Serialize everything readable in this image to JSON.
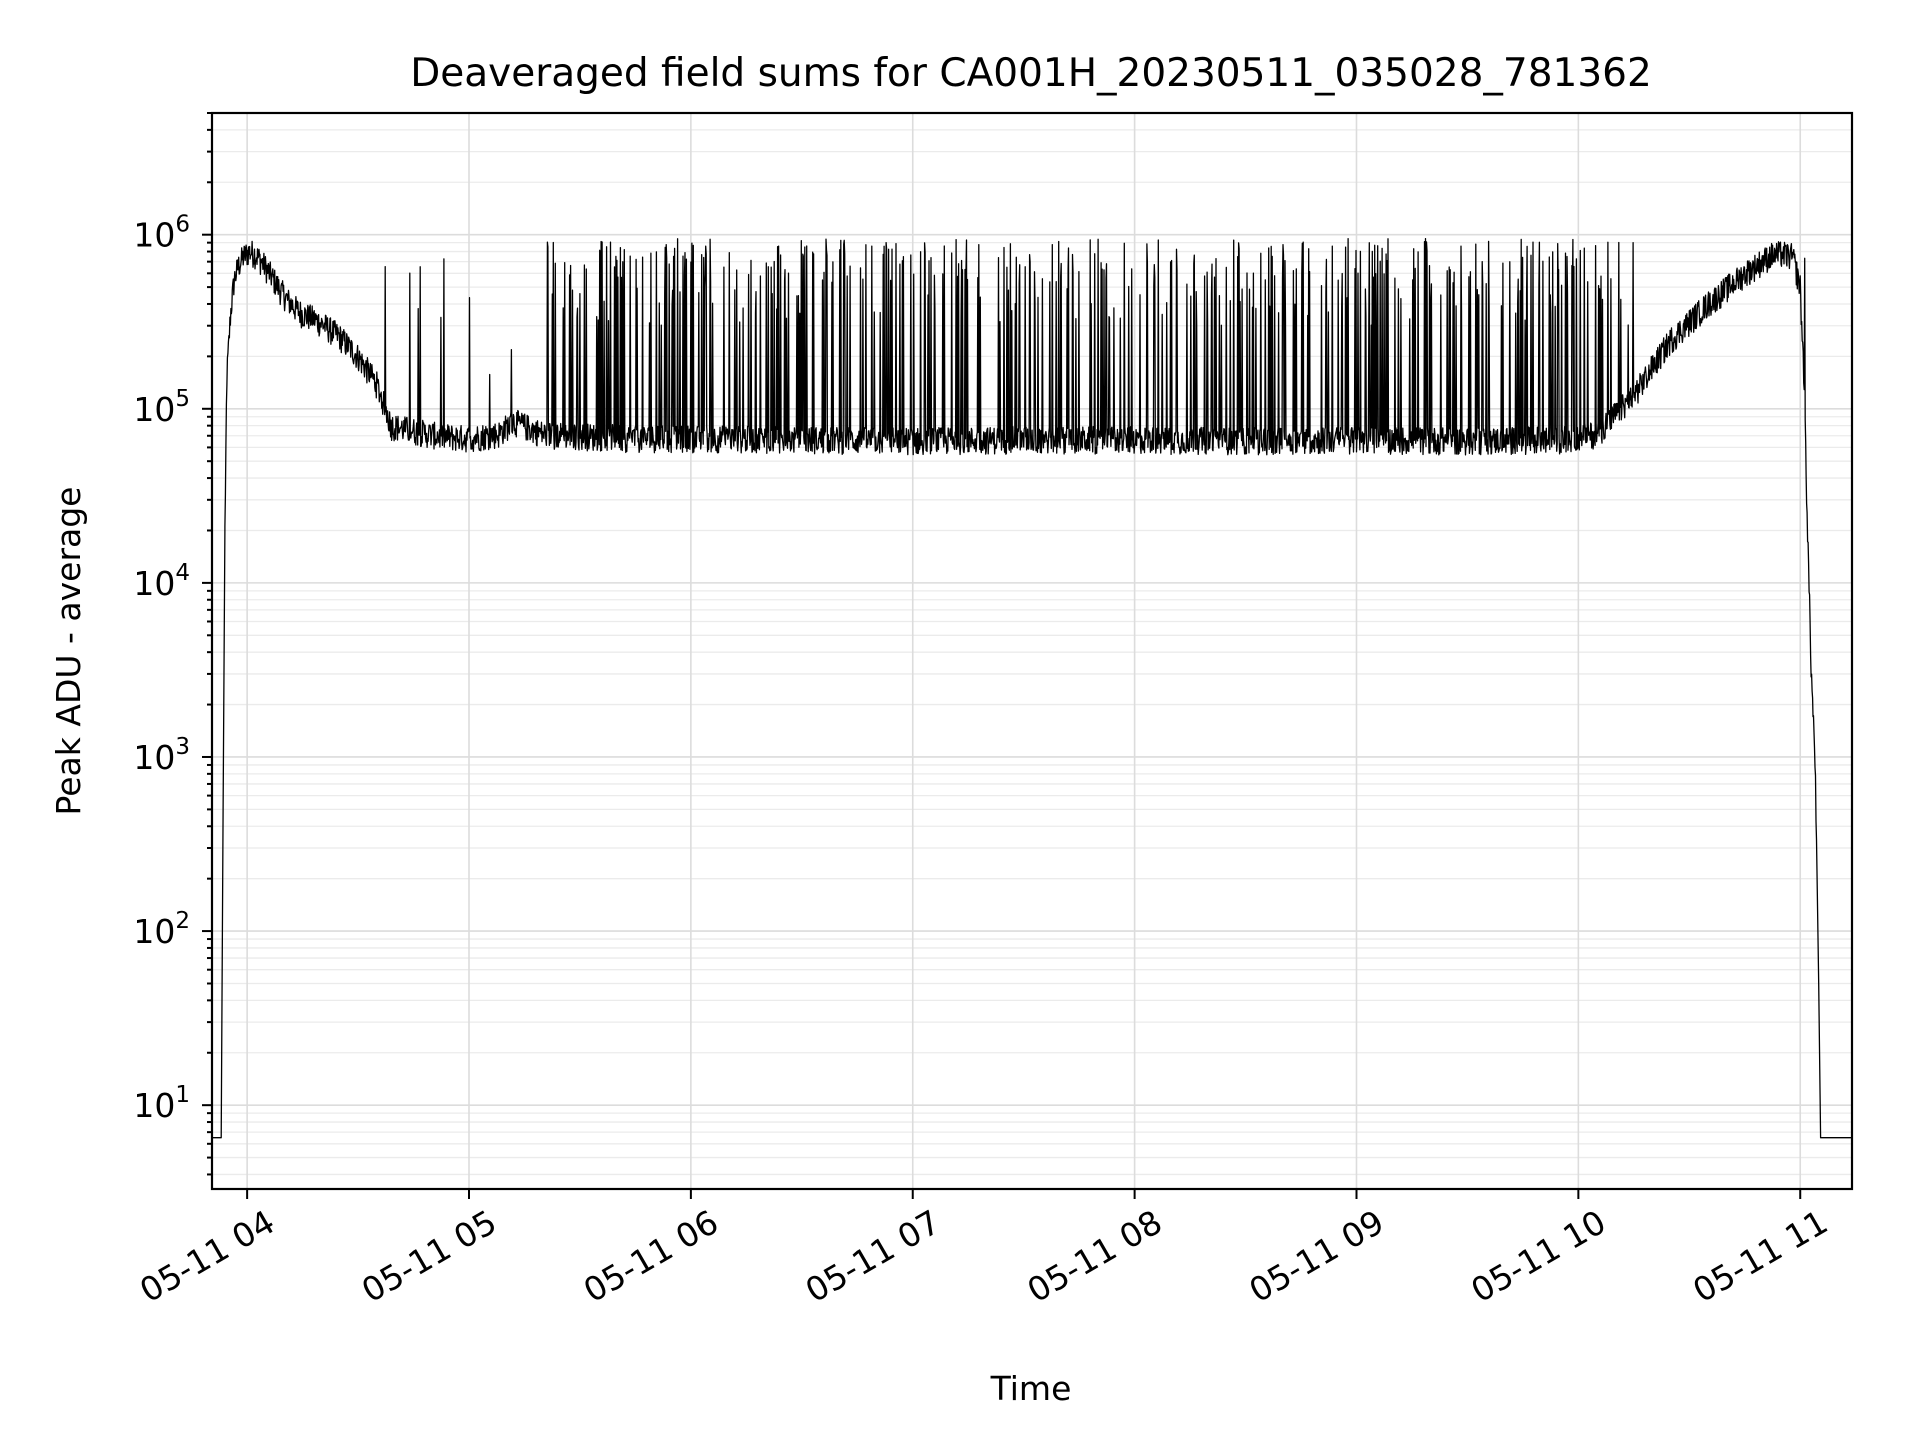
{
  "chart_data": {
    "type": "line",
    "title": "Deaveraged field sums for CA001H_20230511_035028_781362",
    "xlabel": "Time",
    "ylabel": "Peak ADU - average",
    "yscale": "log",
    "xlim": [
      "2023-05-11T03:50:30",
      "2023-05-11T11:14:00"
    ],
    "ylim": [
      3.3,
      5000000
    ],
    "grid": true,
    "x_ticks": [
      {
        "label": "05-11 04",
        "value": "2023-05-11T04:00:00"
      },
      {
        "label": "05-11 05",
        "value": "2023-05-11T05:00:00"
      },
      {
        "label": "05-11 06",
        "value": "2023-05-11T06:00:00"
      },
      {
        "label": "05-11 07",
        "value": "2023-05-11T07:00:00"
      },
      {
        "label": "05-11 08",
        "value": "2023-05-11T08:00:00"
      },
      {
        "label": "05-11 09",
        "value": "2023-05-11T09:00:00"
      },
      {
        "label": "05-11 10",
        "value": "2023-05-11T10:00:00"
      },
      {
        "label": "05-11 11",
        "value": "2023-05-11T11:00:00"
      }
    ],
    "y_ticks": [
      {
        "base": "10",
        "exp": "1",
        "value": 10
      },
      {
        "base": "10",
        "exp": "2",
        "value": 100
      },
      {
        "base": "10",
        "exp": "3",
        "value": 1000
      },
      {
        "base": "10",
        "exp": "4",
        "value": 10000
      },
      {
        "base": "10",
        "exp": "5",
        "value": 100000
      },
      {
        "base": "10",
        "exp": "6",
        "value": 1000000
      }
    ],
    "series": [
      {
        "color": "#000000",
        "x": [
          "2023-05-11T03:50:30",
          "2023-05-11T03:53:00",
          "2023-05-11T03:53:30",
          "2023-05-11T03:54:00",
          "2023-05-11T03:54:30",
          "2023-05-11T03:55:30",
          "2023-05-11T03:56:30",
          "2023-05-11T03:57:30",
          "2023-05-11T03:59:00",
          "2023-05-11T04:00:30",
          "2023-05-11T04:02:00",
          "2023-05-11T04:03:30",
          "2023-05-11T04:05:00",
          "2023-05-11T04:07:00",
          "2023-05-11T04:09:00",
          "2023-05-11T04:11:00",
          "2023-05-11T04:13:00",
          "2023-05-11T04:15:00",
          "2023-05-11T04:18:00",
          "2023-05-11T04:21:00",
          "2023-05-11T04:25:00",
          "2023-05-11T04:30:00",
          "2023-05-11T04:35:00",
          "2023-05-11T04:39:00",
          "2023-05-11T04:45:00",
          "2023-05-11T04:52:00",
          "2023-05-11T05:00:00",
          "2023-05-11T05:08:00",
          "2023-05-11T05:12:00",
          "2023-05-11T05:20:00",
          "2023-05-11T05:30:00",
          "2023-05-11T05:45:00",
          "2023-05-11T06:00:00",
          "2023-05-11T06:30:00",
          "2023-05-11T07:00:00",
          "2023-05-11T07:30:00",
          "2023-05-11T08:00:00",
          "2023-05-11T08:30:00",
          "2023-05-11T09:00:00",
          "2023-05-11T09:30:00",
          "2023-05-11T09:55:00",
          "2023-05-11T10:05:00",
          "2023-05-11T10:15:00",
          "2023-05-11T10:25:00",
          "2023-05-11T10:35:00",
          "2023-05-11T10:45:00",
          "2023-05-11T10:52:00",
          "2023-05-11T10:55:00",
          "2023-05-11T10:58:00",
          "2023-05-11T11:00:00",
          "2023-05-11T11:01:00",
          "2023-05-11T11:02:00",
          "2023-05-11T11:03:00",
          "2023-05-11T11:04:00",
          "2023-05-11T11:05:00",
          "2023-05-11T11:05:30",
          "2023-05-11T11:14:00"
        ],
        "y": [
          6.5,
          6.5,
          500,
          20000,
          150000,
          350000,
          550000,
          650000,
          750000,
          800000,
          780000,
          720000,
          650000,
          560000,
          480000,
          420000,
          380000,
          350000,
          330000,
          300000,
          260000,
          200000,
          140000,
          80000,
          75000,
          70000,
          68000,
          72000,
          85000,
          72000,
          70000,
          68000,
          68000,
          67000,
          66000,
          67000,
          67000,
          66000,
          67000,
          66000,
          67000,
          72000,
          120000,
          250000,
          400000,
          600000,
          760000,
          780000,
          750000,
          500000,
          150000,
          20000,
          3000,
          1000,
          50,
          6.5,
          6.5
        ]
      }
    ]
  }
}
